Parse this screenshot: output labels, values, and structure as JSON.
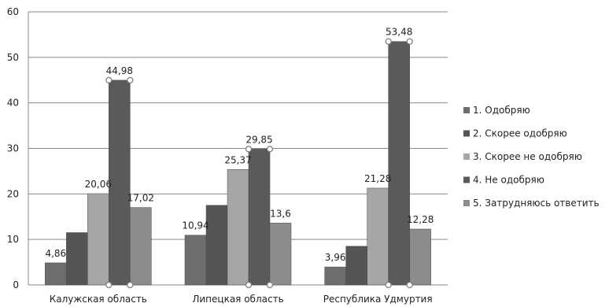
{
  "chart_data": {
    "type": "bar",
    "categories": [
      "Калужская область",
      "Липецкая область",
      "Республика Удмуртия"
    ],
    "series": [
      {
        "name": "1. Одобряю",
        "values": [
          4.86,
          10.94,
          3.96
        ],
        "labels": [
          "4,86",
          "10,94",
          "3,96"
        ],
        "color": "#6e6e6e"
      },
      {
        "name": "2. Скорее одобряю",
        "values": [
          11.5,
          17.5,
          8.5
        ],
        "labels": [
          "",
          "",
          ""
        ],
        "color": "#555555"
      },
      {
        "name": "3. Скорее не одобряю",
        "values": [
          20.06,
          25.37,
          21.28
        ],
        "labels": [
          "20,06",
          "25,37",
          "21,28"
        ],
        "color": "#a6a6a6"
      },
      {
        "name": "4. Не одобряю",
        "values": [
          44.98,
          29.85,
          53.48
        ],
        "labels": [
          "44,98",
          "29,85",
          "53,48"
        ],
        "color": "#5a5a5a"
      },
      {
        "name": "5. Затрудняюсь ответить",
        "values": [
          17.02,
          13.6,
          12.28
        ],
        "labels": [
          "17,02",
          "13,6",
          "12,28"
        ],
        "color": "#8c8c8c"
      }
    ],
    "yticks": [
      "0",
      "10",
      "20",
      "30",
      "40",
      "50",
      "60"
    ],
    "ylim": [
      0,
      60
    ],
    "grid": true,
    "legend": "right"
  }
}
